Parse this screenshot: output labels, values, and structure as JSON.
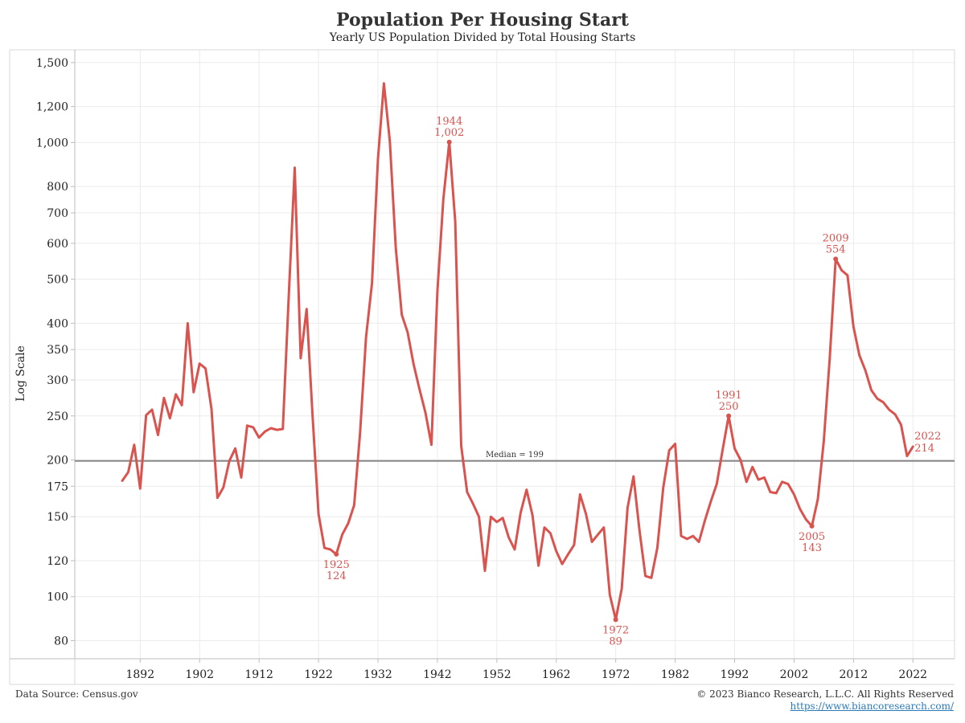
{
  "header": {
    "title": "Population Per Housing Start",
    "subtitle": "Yearly US Population Divided by Total Housing Starts"
  },
  "footer": {
    "source": "Data Source: Census.gov",
    "copyright": "© 2023 Bianco Research, L.L.C. All Rights Reserved",
    "url": "https://www.biancoresearch.com/"
  },
  "colors": {
    "line": "#d9534f",
    "median": "#888888",
    "grid": "#ebebeb"
  },
  "chart_data": {
    "type": "line",
    "title": "Population Per Housing Start",
    "subtitle": "Yearly US Population Divided by Total Housing Starts",
    "ylabel": "Log Scale",
    "yscale": "log",
    "ylim": [
      73,
      1600
    ],
    "xlim": [
      1881,
      2029
    ],
    "grid": true,
    "y_ticks": [
      80,
      100,
      120,
      150,
      175,
      200,
      250,
      300,
      350,
      400,
      500,
      600,
      700,
      800,
      1000,
      1200,
      1500
    ],
    "y_tick_labels": [
      "80",
      "100",
      "120",
      "150",
      "175",
      "200",
      "250",
      "300",
      "350",
      "400",
      "500",
      "600",
      "700",
      "800",
      "1,000",
      "1,200",
      "1,500"
    ],
    "x_ticks": [
      1892,
      1902,
      1912,
      1922,
      1932,
      1942,
      1952,
      1962,
      1972,
      1982,
      1992,
      2002,
      2012,
      2022
    ],
    "x_tick_labels": [
      "1892",
      "1902",
      "1912",
      "1922",
      "1932",
      "1942",
      "1952",
      "1962",
      "1972",
      "1982",
      "1992",
      "2002",
      "2012",
      "2022"
    ],
    "series": [
      {
        "x": [
          1889,
          1890,
          1891,
          1892,
          1893,
          1894,
          1895,
          1896,
          1897,
          1898,
          1899,
          1900,
          1901,
          1902,
          1903,
          1904,
          1905,
          1906,
          1907,
          1908,
          1909,
          1910,
          1911,
          1912,
          1913,
          1914,
          1915,
          1916,
          1917,
          1918,
          1919,
          1920,
          1921,
          1922,
          1923,
          1924,
          1925,
          1926,
          1927,
          1928,
          1929,
          1930,
          1931,
          1932,
          1933,
          1934,
          1935,
          1936,
          1937,
          1938,
          1939,
          1940,
          1941,
          1942,
          1943,
          1944,
          1945,
          1946,
          1947,
          1948,
          1949,
          1950,
          1951,
          1952,
          1953,
          1954,
          1955,
          1956,
          1957,
          1958,
          1959,
          1960,
          1961,
          1962,
          1963,
          1964,
          1965,
          1966,
          1967,
          1968,
          1969,
          1970,
          1971,
          1972,
          1973,
          1974,
          1975,
          1976,
          1977,
          1978,
          1979,
          1980,
          1981,
          1982,
          1983,
          1984,
          1985,
          1986,
          1987,
          1988,
          1989,
          1990,
          1991,
          1992,
          1993,
          1994,
          1995,
          1996,
          1997,
          1998,
          1999,
          2000,
          2001,
          2002,
          2003,
          2004,
          2005,
          2006,
          2007,
          2008,
          2009,
          2010,
          2011,
          2012,
          2013,
          2014,
          2015,
          2016,
          2017,
          2018,
          2019,
          2020,
          2021,
          2022
        ],
        "values": [
          180,
          188,
          216,
          173,
          251,
          258,
          227,
          274,
          247,
          279,
          264,
          400,
          282,
          326,
          318,
          259,
          165,
          174,
          199,
          212,
          183,
          238,
          236,
          224,
          231,
          235,
          233,
          234,
          460,
          880,
          335,
          430,
          250,
          152,
          128,
          127,
          124,
          137,
          145,
          159,
          230,
          373,
          490,
          920,
          1350,
          1005,
          585,
          418,
          382,
          325,
          286,
          254,
          216,
          470,
          750,
          1002,
          670,
          215,
          170,
          160,
          150,
          114,
          150,
          146,
          149,
          135,
          127,
          153,
          172,
          151,
          117,
          142,
          138,
          126,
          118,
          124,
          130,
          168,
          152,
          132,
          137,
          142,
          101,
          89,
          104,
          157,
          184,
          140,
          111,
          110,
          128,
          174,
          210,
          217,
          136,
          134,
          136,
          132,
          147,
          162,
          177,
          211,
          250,
          212,
          200,
          179,
          193,
          181,
          183,
          170,
          169,
          179,
          177,
          168,
          156,
          148,
          143,
          164,
          220,
          335,
          554,
          523,
          510,
          393,
          340,
          315,
          285,
          273,
          268,
          258,
          252,
          239,
          204,
          214
        ]
      }
    ],
    "median": {
      "value": 199,
      "label": "Median = 199"
    },
    "annotations": [
      {
        "year_label": "1925",
        "value_label": "124",
        "x": 1925,
        "y": 124,
        "placement": "below"
      },
      {
        "year_label": "1944",
        "value_label": "1,002",
        "x": 1944,
        "y": 1002,
        "placement": "above"
      },
      {
        "year_label": "1972",
        "value_label": "89",
        "x": 1972,
        "y": 89,
        "placement": "below"
      },
      {
        "year_label": "1991",
        "value_label": "250",
        "x": 1991,
        "y": 250,
        "placement": "above"
      },
      {
        "year_label": "2005",
        "value_label": "143",
        "x": 2005,
        "y": 143,
        "placement": "below"
      },
      {
        "year_label": "2009",
        "value_label": "554",
        "x": 2009,
        "y": 554,
        "placement": "above"
      },
      {
        "year_label": "2022",
        "value_label": "214",
        "x": 2022,
        "y": 214,
        "placement": "right"
      }
    ]
  }
}
